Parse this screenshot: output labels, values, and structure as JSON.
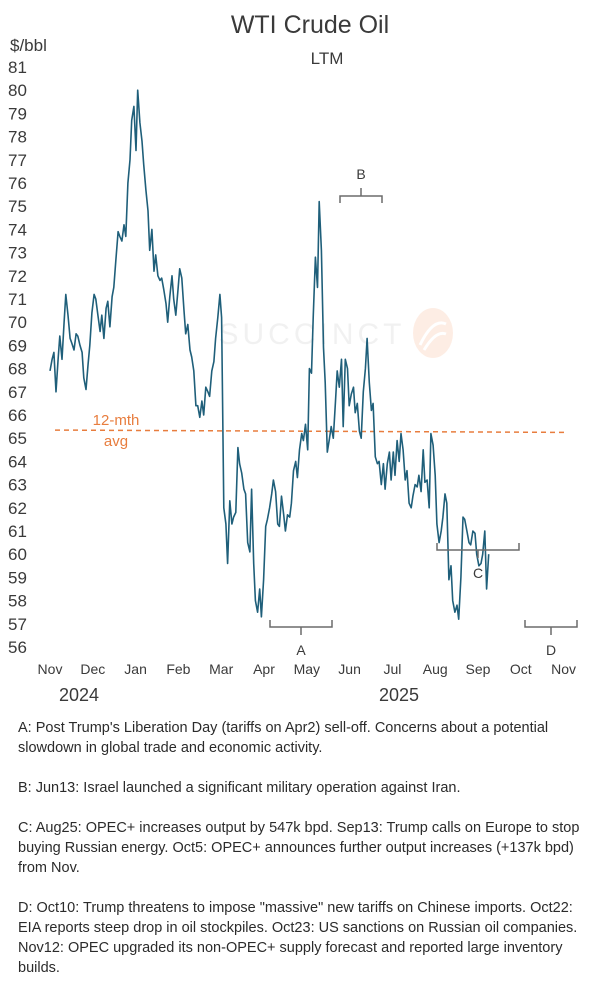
{
  "chart_data": {
    "type": "line",
    "title": "WTI Crude Oil",
    "subtitle": "LTM",
    "ylabel": "$/bbl",
    "ylim": [
      56,
      81
    ],
    "yticks": [
      56,
      57,
      58,
      59,
      60,
      61,
      62,
      63,
      64,
      65,
      66,
      67,
      68,
      69,
      70,
      71,
      72,
      73,
      74,
      75,
      76,
      77,
      78,
      79,
      80,
      81
    ],
    "months": [
      "Nov",
      "Dec",
      "Jan",
      "Feb",
      "Mar",
      "Apr",
      "May",
      "Jun",
      "Jul",
      "Aug",
      "Sep",
      "Oct",
      "Nov"
    ],
    "years": [
      "2024",
      "2025"
    ],
    "grid": false,
    "line_color": "#1f5f7a",
    "avg_color": "#e87d3e",
    "annotation_color": "#6b6b6b",
    "average": {
      "value": 65.3,
      "label_1": "12-mth",
      "label_2": "avg"
    },
    "series": [
      {
        "values": [
          [
            0,
            67.9
          ],
          [
            0.05,
            68.4
          ],
          [
            0.09,
            68.7
          ],
          [
            0.14,
            67.0
          ],
          [
            0.19,
            68.4
          ],
          [
            0.23,
            69.4
          ],
          [
            0.28,
            68.4
          ],
          [
            0.33,
            70.0
          ],
          [
            0.37,
            71.2
          ],
          [
            0.42,
            70.3
          ],
          [
            0.47,
            69.3
          ],
          [
            0.51,
            69.1
          ],
          [
            0.56,
            68.8
          ],
          [
            0.61,
            69.5
          ],
          [
            0.65,
            69.4
          ],
          [
            0.7,
            69.0
          ],
          [
            0.75,
            68.7
          ],
          [
            0.79,
            67.6
          ],
          [
            0.84,
            67.1
          ],
          [
            0.89,
            68.2
          ],
          [
            0.93,
            69.0
          ],
          [
            0.98,
            70.4
          ],
          [
            1.03,
            71.2
          ],
          [
            1.07,
            71.0
          ],
          [
            1.12,
            70.3
          ],
          [
            1.17,
            69.6
          ],
          [
            1.21,
            70.3
          ],
          [
            1.26,
            69.3
          ],
          [
            1.31,
            70.6
          ],
          [
            1.35,
            70.9
          ],
          [
            1.4,
            69.8
          ],
          [
            1.45,
            71.1
          ],
          [
            1.49,
            71.5
          ],
          [
            1.54,
            72.7
          ],
          [
            1.59,
            73.9
          ],
          [
            1.63,
            73.7
          ],
          [
            1.68,
            73.5
          ],
          [
            1.73,
            74.2
          ],
          [
            1.77,
            73.7
          ],
          [
            1.82,
            76.0
          ],
          [
            1.87,
            77.0
          ],
          [
            1.91,
            78.7
          ],
          [
            1.96,
            79.3
          ],
          [
            2.01,
            77.4
          ],
          [
            2.05,
            80.0
          ],
          [
            2.1,
            78.6
          ],
          [
            2.15,
            77.8
          ],
          [
            2.19,
            76.8
          ],
          [
            2.24,
            75.7
          ],
          [
            2.29,
            74.8
          ],
          [
            2.33,
            73.1
          ],
          [
            2.38,
            74.0
          ],
          [
            2.43,
            72.2
          ],
          [
            2.47,
            72.9
          ],
          [
            2.52,
            72.0
          ],
          [
            2.57,
            71.8
          ],
          [
            2.61,
            71.9
          ],
          [
            2.66,
            71.4
          ],
          [
            2.71,
            70.8
          ],
          [
            2.75,
            70.0
          ],
          [
            2.8,
            71.1
          ],
          [
            2.85,
            72.0
          ],
          [
            2.89,
            71.0
          ],
          [
            2.94,
            70.3
          ],
          [
            2.99,
            71.4
          ],
          [
            3.03,
            72.3
          ],
          [
            3.08,
            71.9
          ],
          [
            3.13,
            70.5
          ],
          [
            3.17,
            69.5
          ],
          [
            3.22,
            69.9
          ],
          [
            3.27,
            68.8
          ],
          [
            3.31,
            68.5
          ],
          [
            3.36,
            67.9
          ],
          [
            3.41,
            66.4
          ],
          [
            3.45,
            66.4
          ],
          [
            3.5,
            65.9
          ],
          [
            3.55,
            66.6
          ],
          [
            3.59,
            66.0
          ],
          [
            3.64,
            67.2
          ],
          [
            3.69,
            67.0
          ],
          [
            3.73,
            66.8
          ],
          [
            3.78,
            67.9
          ],
          [
            3.83,
            68.3
          ],
          [
            3.87,
            69.3
          ],
          [
            3.92,
            70.2
          ],
          [
            3.97,
            71.2
          ],
          [
            4.01,
            70.2
          ],
          [
            4.06,
            62.0
          ],
          [
            4.11,
            61.3
          ],
          [
            4.15,
            59.6
          ],
          [
            4.2,
            62.3
          ],
          [
            4.25,
            61.3
          ],
          [
            4.29,
            61.6
          ],
          [
            4.34,
            61.8
          ],
          [
            4.39,
            64.6
          ],
          [
            4.43,
            63.9
          ],
          [
            4.48,
            63.5
          ],
          [
            4.53,
            62.8
          ],
          [
            4.57,
            62.6
          ],
          [
            4.62,
            60.5
          ],
          [
            4.67,
            60.1
          ],
          [
            4.71,
            62.8
          ],
          [
            4.76,
            59.6
          ],
          [
            4.8,
            58.0
          ],
          [
            4.85,
            57.5
          ],
          [
            4.9,
            58.5
          ],
          [
            4.94,
            57.3
          ],
          [
            4.99,
            58.9
          ],
          [
            5.04,
            61.2
          ],
          [
            5.08,
            61.5
          ],
          [
            5.13,
            62.0
          ],
          [
            5.18,
            62.6
          ],
          [
            5.22,
            63.2
          ],
          [
            5.27,
            62.7
          ],
          [
            5.32,
            61.3
          ],
          [
            5.36,
            61.2
          ],
          [
            5.41,
            62.5
          ],
          [
            5.46,
            61.7
          ],
          [
            5.5,
            61.0
          ],
          [
            5.55,
            61.7
          ],
          [
            5.6,
            61.6
          ],
          [
            5.64,
            62.2
          ],
          [
            5.69,
            63.6
          ],
          [
            5.74,
            64.0
          ],
          [
            5.78,
            63.3
          ],
          [
            5.83,
            64.5
          ],
          [
            5.88,
            65.2
          ],
          [
            5.92,
            64.9
          ],
          [
            5.97,
            65.6
          ],
          [
            6.02,
            64.5
          ],
          [
            6.06,
            68.0
          ],
          [
            6.11,
            67.8
          ],
          [
            6.15,
            70.2
          ],
          [
            6.2,
            72.8
          ],
          [
            6.25,
            71.5
          ],
          [
            6.29,
            75.2
          ],
          [
            6.34,
            73.1
          ],
          [
            6.39,
            68.9
          ],
          [
            6.43,
            67.4
          ],
          [
            6.48,
            64.4
          ],
          [
            6.53,
            65.0
          ],
          [
            6.57,
            65.5
          ],
          [
            6.62,
            65.0
          ],
          [
            6.67,
            66.6
          ],
          [
            6.71,
            67.9
          ],
          [
            6.76,
            67.2
          ],
          [
            6.81,
            68.4
          ],
          [
            6.85,
            65.5
          ],
          [
            6.9,
            68.4
          ],
          [
            6.95,
            68.0
          ],
          [
            6.99,
            66.4
          ],
          [
            7.04,
            66.9
          ],
          [
            7.09,
            67.2
          ],
          [
            7.13,
            66.1
          ],
          [
            7.18,
            66.5
          ],
          [
            7.23,
            65.3
          ],
          [
            7.27,
            65.0
          ],
          [
            7.32,
            67.0
          ],
          [
            7.37,
            68.0
          ],
          [
            7.41,
            69.3
          ],
          [
            7.46,
            67.4
          ],
          [
            7.51,
            66.2
          ],
          [
            7.55,
            66.5
          ],
          [
            7.6,
            64.2
          ],
          [
            7.65,
            63.9
          ],
          [
            7.69,
            64.0
          ],
          [
            7.74,
            63.0
          ],
          [
            7.79,
            63.9
          ],
          [
            7.83,
            62.8
          ],
          [
            7.88,
            63.9
          ],
          [
            7.93,
            64.4
          ],
          [
            7.97,
            63.2
          ],
          [
            8.02,
            64.4
          ],
          [
            8.06,
            63.4
          ],
          [
            8.11,
            64.9
          ],
          [
            8.16,
            64.0
          ],
          [
            8.2,
            65.2
          ],
          [
            8.25,
            64.5
          ],
          [
            8.3,
            63.2
          ],
          [
            8.34,
            63.6
          ],
          [
            8.39,
            62.2
          ],
          [
            8.44,
            62.0
          ],
          [
            8.48,
            62.5
          ],
          [
            8.53,
            63.0
          ],
          [
            8.58,
            62.9
          ],
          [
            8.62,
            63.4
          ],
          [
            8.67,
            62.7
          ],
          [
            8.72,
            64.5
          ],
          [
            8.76,
            63.1
          ],
          [
            8.81,
            63.2
          ],
          [
            8.86,
            62.0
          ],
          [
            8.9,
            65.2
          ],
          [
            8.95,
            64.7
          ],
          [
            9.0,
            63.4
          ],
          [
            9.04,
            61.3
          ],
          [
            9.09,
            60.5
          ],
          [
            9.14,
            61.0
          ],
          [
            9.18,
            61.6
          ],
          [
            9.23,
            62.6
          ],
          [
            9.27,
            62.2
          ],
          [
            9.32,
            58.9
          ],
          [
            9.37,
            59.5
          ],
          [
            9.41,
            58.0
          ],
          [
            9.46,
            57.5
          ],
          [
            9.51,
            57.8
          ],
          [
            9.55,
            57.2
          ],
          [
            9.6,
            59.0
          ],
          [
            9.65,
            61.6
          ],
          [
            9.69,
            61.5
          ],
          [
            9.74,
            61.0
          ],
          [
            9.79,
            60.5
          ],
          [
            9.83,
            60.4
          ],
          [
            9.88,
            61.0
          ],
          [
            9.93,
            60.9
          ],
          [
            9.97,
            60.0
          ],
          [
            10.02,
            59.5
          ],
          [
            10.07,
            59.6
          ],
          [
            10.11,
            60.0
          ],
          [
            10.16,
            61.0
          ],
          [
            10.2,
            58.5
          ],
          [
            10.25,
            60.0
          ]
        ]
      }
    ],
    "annotations": [
      {
        "letter": "A",
        "note": "A: Post Trump's Liberation Day (tariffs on Apr2) sell-off. Concerns about a potential slowdown in global trade and economic activity."
      },
      {
        "letter": "B",
        "note": "B: Jun13: Israel launched a significant military operation against Iran."
      },
      {
        "letter": "C",
        "note": "C: Aug25: OPEC+ increases output by 547k bpd. Sep13: Trump calls on Europe to stop buying Russian energy. Oct5: OPEC+ announces further output increases (+137k bpd) from Nov."
      },
      {
        "letter": "D",
        "note": "D: Oct10: Trump threatens to impose \"massive\" new tariffs on Chinese imports. Oct22: EIA reports steep drop in oil stockpiles. Oct23: US sanctions on Russian oil companies. Nov12: OPEC upgraded its non-OPEC+ supply forecast and reported large inventory builds."
      }
    ]
  }
}
